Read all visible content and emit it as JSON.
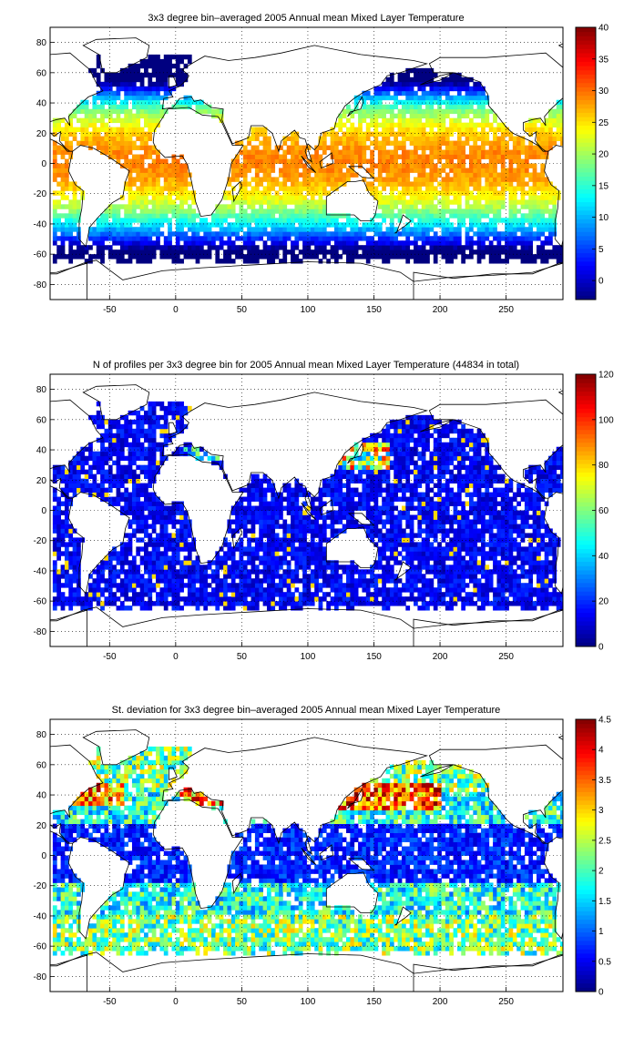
{
  "chart_data": [
    {
      "type": "heatmap",
      "title": "3x3 degree bin–averaged 2005 Annual mean Mixed Layer Temperature",
      "xlabel": "",
      "ylabel": "",
      "xlim": [
        -95,
        293
      ],
      "ylim": [
        -90,
        90
      ],
      "x_ticks": [
        -50,
        0,
        50,
        100,
        150,
        200,
        250
      ],
      "y_ticks": [
        -80,
        -60,
        -40,
        -20,
        0,
        20,
        40,
        60,
        80
      ],
      "grid": true,
      "colorbar": {
        "min": -3,
        "max": 40,
        "ticks": [
          0,
          5,
          10,
          15,
          20,
          25,
          30,
          35,
          40
        ],
        "colormap": "jet",
        "placement": "right"
      },
      "field": "mixed_layer_temperature",
      "note_values": "Gridded 3x3 degree bins; value pattern: ~28 in tropics decreasing to ~0 near 60S and in the subpolar North Atlantic"
    },
    {
      "type": "heatmap",
      "title": "N of profiles per 3x3 degree bin for 2005 Annual mean Mixed Layer Temperature  (44834 in total)",
      "xlabel": "",
      "ylabel": "",
      "xlim": [
        -95,
        293
      ],
      "ylim": [
        -90,
        90
      ],
      "x_ticks": [
        -50,
        0,
        50,
        100,
        150,
        200,
        250
      ],
      "y_ticks": [
        -80,
        -60,
        -40,
        -20,
        0,
        20,
        40,
        60,
        80
      ],
      "grid": true,
      "colorbar": {
        "min": 0,
        "max": 120,
        "ticks": [
          0,
          20,
          40,
          60,
          80,
          100,
          120
        ],
        "colormap": "jet",
        "placement": "right"
      },
      "field": "profile_count",
      "total_profiles": 44834,
      "note_values": "Mostly 5-20 profiles per bin; hotspots up to ~110 near 35N 140E (Kuroshio) and ~60-80 in the Mediterranean / Arabian Sea"
    },
    {
      "type": "heatmap",
      "title": "St. deviation for 3x3 degree bin–averaged 2005 Annual mean Mixed Layer Temperature",
      "xlabel": "",
      "ylabel": "",
      "xlim": [
        -95,
        293
      ],
      "ylim": [
        -90,
        90
      ],
      "x_ticks": [
        -50,
        0,
        50,
        100,
        150,
        200,
        250
      ],
      "y_ticks": [
        -80,
        -60,
        -40,
        -20,
        0,
        20,
        40,
        60,
        80
      ],
      "grid": true,
      "colorbar": {
        "min": 0,
        "max": 4.5,
        "ticks": [
          0,
          0.5,
          1,
          1.5,
          2,
          2.5,
          3,
          3.5,
          4,
          4.5
        ],
        "colormap": "jet",
        "placement": "right"
      },
      "field": "temperature_std",
      "note_values": "Low (~0.3-0.8) in tropics, high (~3-4.5) at 30-45N in the NW Pacific and NW Atlantic, ~1.5-3 in the Southern Ocean"
    }
  ],
  "panel_titles": [
    "3x3 degree bin–averaged 2005 Annual mean Mixed Layer Temperature",
    "N of profiles per 3x3 degree bin for 2005 Annual mean Mixed Layer Temperature  (44834 in total)",
    "St. deviation for 3x3 degree bin–averaged 2005 Annual mean Mixed Layer Temperature"
  ]
}
